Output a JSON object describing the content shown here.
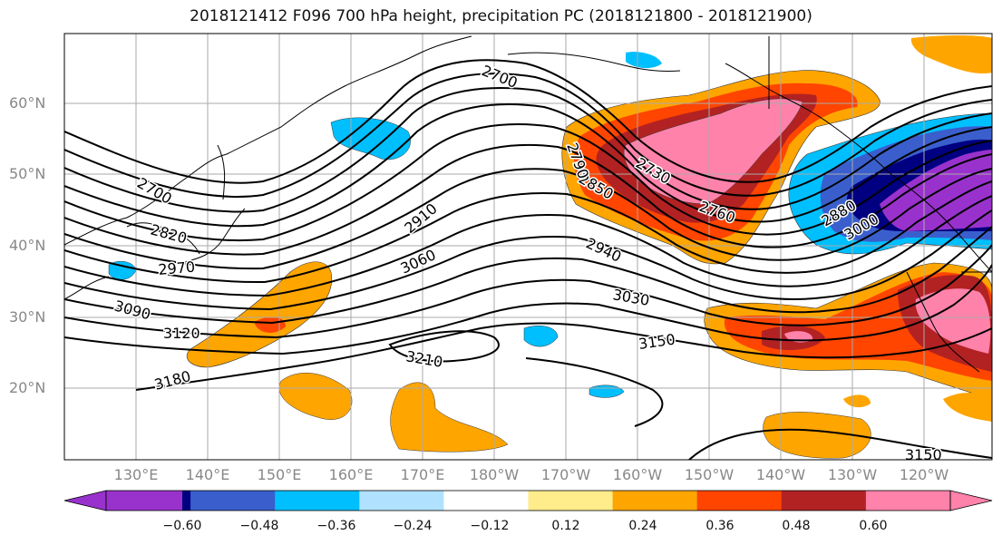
{
  "title": "2018121412 F096 700 hPa height, precipitation PC (2018121800 - 2018121900)",
  "lat_labels": [
    "60°N",
    "50°N",
    "40°N",
    "30°N",
    "20°N"
  ],
  "lon_labels": [
    "130°E",
    "140°E",
    "150°E",
    "160°E",
    "170°E",
    "180°W",
    "170°W",
    "160°W",
    "150°W",
    "140°W",
    "130°W",
    "120°W"
  ],
  "contour_labels": [
    "2700",
    "2700",
    "2820",
    "2970",
    "3090",
    "3120",
    "3180",
    "3210",
    "2910",
    "3060",
    "2940",
    "3030",
    "3150",
    "3150",
    "2730",
    "2760",
    "2850",
    "2790",
    "2880",
    "3000"
  ],
  "colorbar": {
    "ticks": [
      "−0.60",
      "−0.48",
      "−0.36",
      "−0.24",
      "−0.12",
      "0.12",
      "0.24",
      "0.36",
      "0.48",
      "0.60"
    ],
    "colors": [
      "#9932cc",
      "#000080",
      "#3a5fcd",
      "#00bfff",
      "#b0e2ff",
      "#ffffff",
      "#ffec8b",
      "#ffa500",
      "#ff4500",
      "#b22222",
      "#ff82ab",
      "#ff82ab"
    ]
  }
}
